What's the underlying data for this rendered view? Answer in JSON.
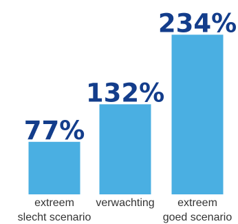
{
  "chart_data": {
    "type": "bar",
    "categories": [
      [
        "extreem",
        "slecht scenario"
      ],
      [
        "verwachting"
      ],
      [
        "extreem",
        "goed scenario"
      ]
    ],
    "values": [
      77,
      132,
      234
    ],
    "value_labels": [
      "77%",
      "132%",
      "234%"
    ],
    "ylim": [
      0,
      250
    ],
    "grid": false,
    "legend": "none",
    "title": "",
    "xlabel": "",
    "ylabel": ""
  },
  "colors": {
    "bar": "#4aafe2",
    "value_text": "#133d8b",
    "label_text": "#333333"
  }
}
